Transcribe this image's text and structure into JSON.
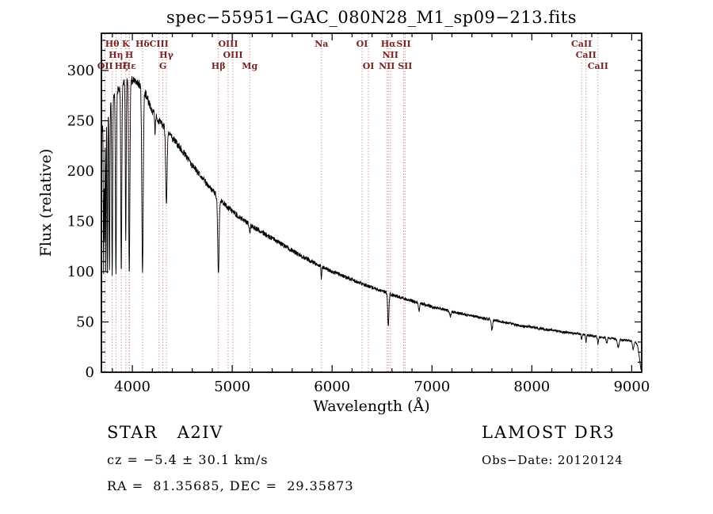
{
  "chart_data": {
    "type": "line",
    "title": "spec−55951−GAC_080N28_M1_sp09−213.fits",
    "xlabel": "Wavelength (Å)",
    "ylabel": "Flux (relative)",
    "xlim": [
      3690,
      9100
    ],
    "ylim": [
      0,
      337
    ],
    "xticks": [
      4000,
      5000,
      6000,
      7000,
      8000,
      9000
    ],
    "yticks": [
      0,
      50,
      100,
      150,
      200,
      250,
      300
    ],
    "xminor": 200,
    "yminor": 10,
    "grid": false,
    "legend": "none",
    "line_color": "#000000",
    "marker_line_color": "#c46a6a",
    "marker_label_color": "#7b2222",
    "lines": [
      {
        "label": "OII",
        "wl": 3727.3,
        "row": 3
      },
      {
        "label": "Hθ",
        "wl": 3798.0,
        "row": 1
      },
      {
        "label": "Hη",
        "wl": 3835.4,
        "row": 2
      },
      {
        "label": "Hζ",
        "wl": 3889.1,
        "row": 3
      },
      {
        "label": "K",
        "wl": 3933.7,
        "row": 1
      },
      {
        "label": "H",
        "wl": 3968.5,
        "row": 2
      },
      {
        "label": "Hε",
        "wl": 3970.1,
        "row": 3
      },
      {
        "label": "Hδ",
        "wl": 4101.7,
        "row": 1
      },
      {
        "label": "CIII",
        "wl": 4267.0,
        "row": 1
      },
      {
        "label": "G",
        "wl": 4305.6,
        "row": 3
      },
      {
        "label": "Hγ",
        "wl": 4340.5,
        "row": 2
      },
      {
        "label": "Hβ",
        "wl": 4861.3,
        "row": 3
      },
      {
        "label": "OIII",
        "wl": 4959.0,
        "row": 1
      },
      {
        "label": "OIII",
        "wl": 5006.8,
        "row": 2
      },
      {
        "label": "Mg",
        "wl": 5175.3,
        "row": 3
      },
      {
        "label": "Na",
        "wl": 5894.0,
        "row": 1
      },
      {
        "label": "OI",
        "wl": 6300.2,
        "row": 1
      },
      {
        "label": "OI",
        "wl": 6363.8,
        "row": 3
      },
      {
        "label": "NII",
        "wl": 6548.1,
        "row": 3
      },
      {
        "label": "Hα",
        "wl": 6562.8,
        "row": 1
      },
      {
        "label": "NII",
        "wl": 6583.5,
        "row": 2
      },
      {
        "label": "SII",
        "wl": 6716.4,
        "row": 1
      },
      {
        "label": "SII",
        "wl": 6730.8,
        "row": 3
      },
      {
        "label": "CaII",
        "wl": 8498.0,
        "row": 1
      },
      {
        "label": "CaII",
        "wl": 8542.1,
        "row": 2
      },
      {
        "label": "CaII",
        "wl": 8662.1,
        "row": 3
      }
    ],
    "spectrum": {
      "range": [
        3698,
        9092
      ],
      "continuum": [
        [
          3698,
          240
        ],
        [
          3720,
          252
        ],
        [
          3760,
          265
        ],
        [
          3800,
          272
        ],
        [
          3850,
          280
        ],
        [
          3900,
          286
        ],
        [
          3950,
          290
        ],
        [
          4000,
          290
        ],
        [
          4060,
          288
        ],
        [
          4120,
          280
        ],
        [
          4160,
          270
        ],
        [
          4200,
          260
        ],
        [
          4250,
          252
        ],
        [
          4300,
          246
        ],
        [
          4350,
          240
        ],
        [
          4400,
          233
        ],
        [
          4450,
          227
        ],
        [
          4500,
          220
        ],
        [
          4600,
          206
        ],
        [
          4700,
          193
        ],
        [
          4800,
          181
        ],
        [
          4900,
          169
        ],
        [
          5000,
          160
        ],
        [
          5100,
          152
        ],
        [
          5200,
          145
        ],
        [
          5300,
          139
        ],
        [
          5400,
          133
        ],
        [
          5500,
          127
        ],
        [
          5600,
          121
        ],
        [
          5700,
          115
        ],
        [
          5800,
          110
        ],
        [
          5900,
          105
        ],
        [
          6000,
          100
        ],
        [
          6100,
          96
        ],
        [
          6200,
          92
        ],
        [
          6300,
          88
        ],
        [
          6400,
          84
        ],
        [
          6500,
          81
        ],
        [
          6600,
          77
        ],
        [
          6700,
          74
        ],
        [
          6800,
          71
        ],
        [
          6900,
          68
        ],
        [
          7000,
          65
        ],
        [
          7100,
          63
        ],
        [
          7200,
          60
        ],
        [
          7300,
          58
        ],
        [
          7400,
          56
        ],
        [
          7500,
          54
        ],
        [
          7600,
          52
        ],
        [
          7700,
          50
        ],
        [
          7800,
          48
        ],
        [
          7900,
          46
        ],
        [
          8000,
          45
        ],
        [
          8100,
          43
        ],
        [
          8200,
          42
        ],
        [
          8300,
          40
        ],
        [
          8400,
          39
        ],
        [
          8500,
          38
        ],
        [
          8600,
          36
        ],
        [
          8700,
          35
        ],
        [
          8800,
          34
        ],
        [
          8900,
          32
        ],
        [
          9000,
          31
        ],
        [
          9040,
          30
        ],
        [
          9060,
          26
        ],
        [
          9075,
          16
        ],
        [
          9092,
          3
        ]
      ],
      "absorption_lines": [
        [
          3712.0,
          150,
          3
        ],
        [
          3722.0,
          120,
          3
        ],
        [
          3734.4,
          158,
          3
        ],
        [
          3750.2,
          163,
          3.5
        ],
        [
          3770.6,
          168,
          4
        ],
        [
          3798.0,
          175,
          4.5
        ],
        [
          3835.4,
          180,
          5
        ],
        [
          3889.1,
          186,
          5
        ],
        [
          3933.7,
          160,
          4
        ],
        [
          3969.0,
          192,
          6
        ],
        [
          4101.7,
          185,
          7
        ],
        [
          4226.7,
          18,
          3
        ],
        [
          4340.5,
          73,
          7
        ],
        [
          4861.3,
          76,
          7
        ],
        [
          5175.3,
          8,
          5
        ],
        [
          5893.0,
          12,
          4
        ],
        [
          6562.8,
          33,
          6
        ],
        [
          6870.0,
          8,
          5
        ],
        [
          7185.0,
          5,
          6
        ],
        [
          7600.0,
          10,
          7
        ],
        [
          8498.0,
          6,
          4
        ],
        [
          8542.1,
          7,
          4
        ],
        [
          8662.1,
          7,
          5
        ],
        [
          8750.0,
          6,
          6
        ],
        [
          8865.0,
          8,
          8
        ],
        [
          9015.0,
          8,
          7
        ]
      ],
      "noise_base": 0.7,
      "noise_scale": 0.013
    }
  },
  "annotations": {
    "class_label": "STAR   A2IV",
    "cz": "cz = −5.4 ± 30.1 km/s",
    "radec": "RA =  81.35685, DEC =  29.35873",
    "survey": "LAMOST DR3",
    "obs_date": "Obs−Date: 20120124"
  }
}
